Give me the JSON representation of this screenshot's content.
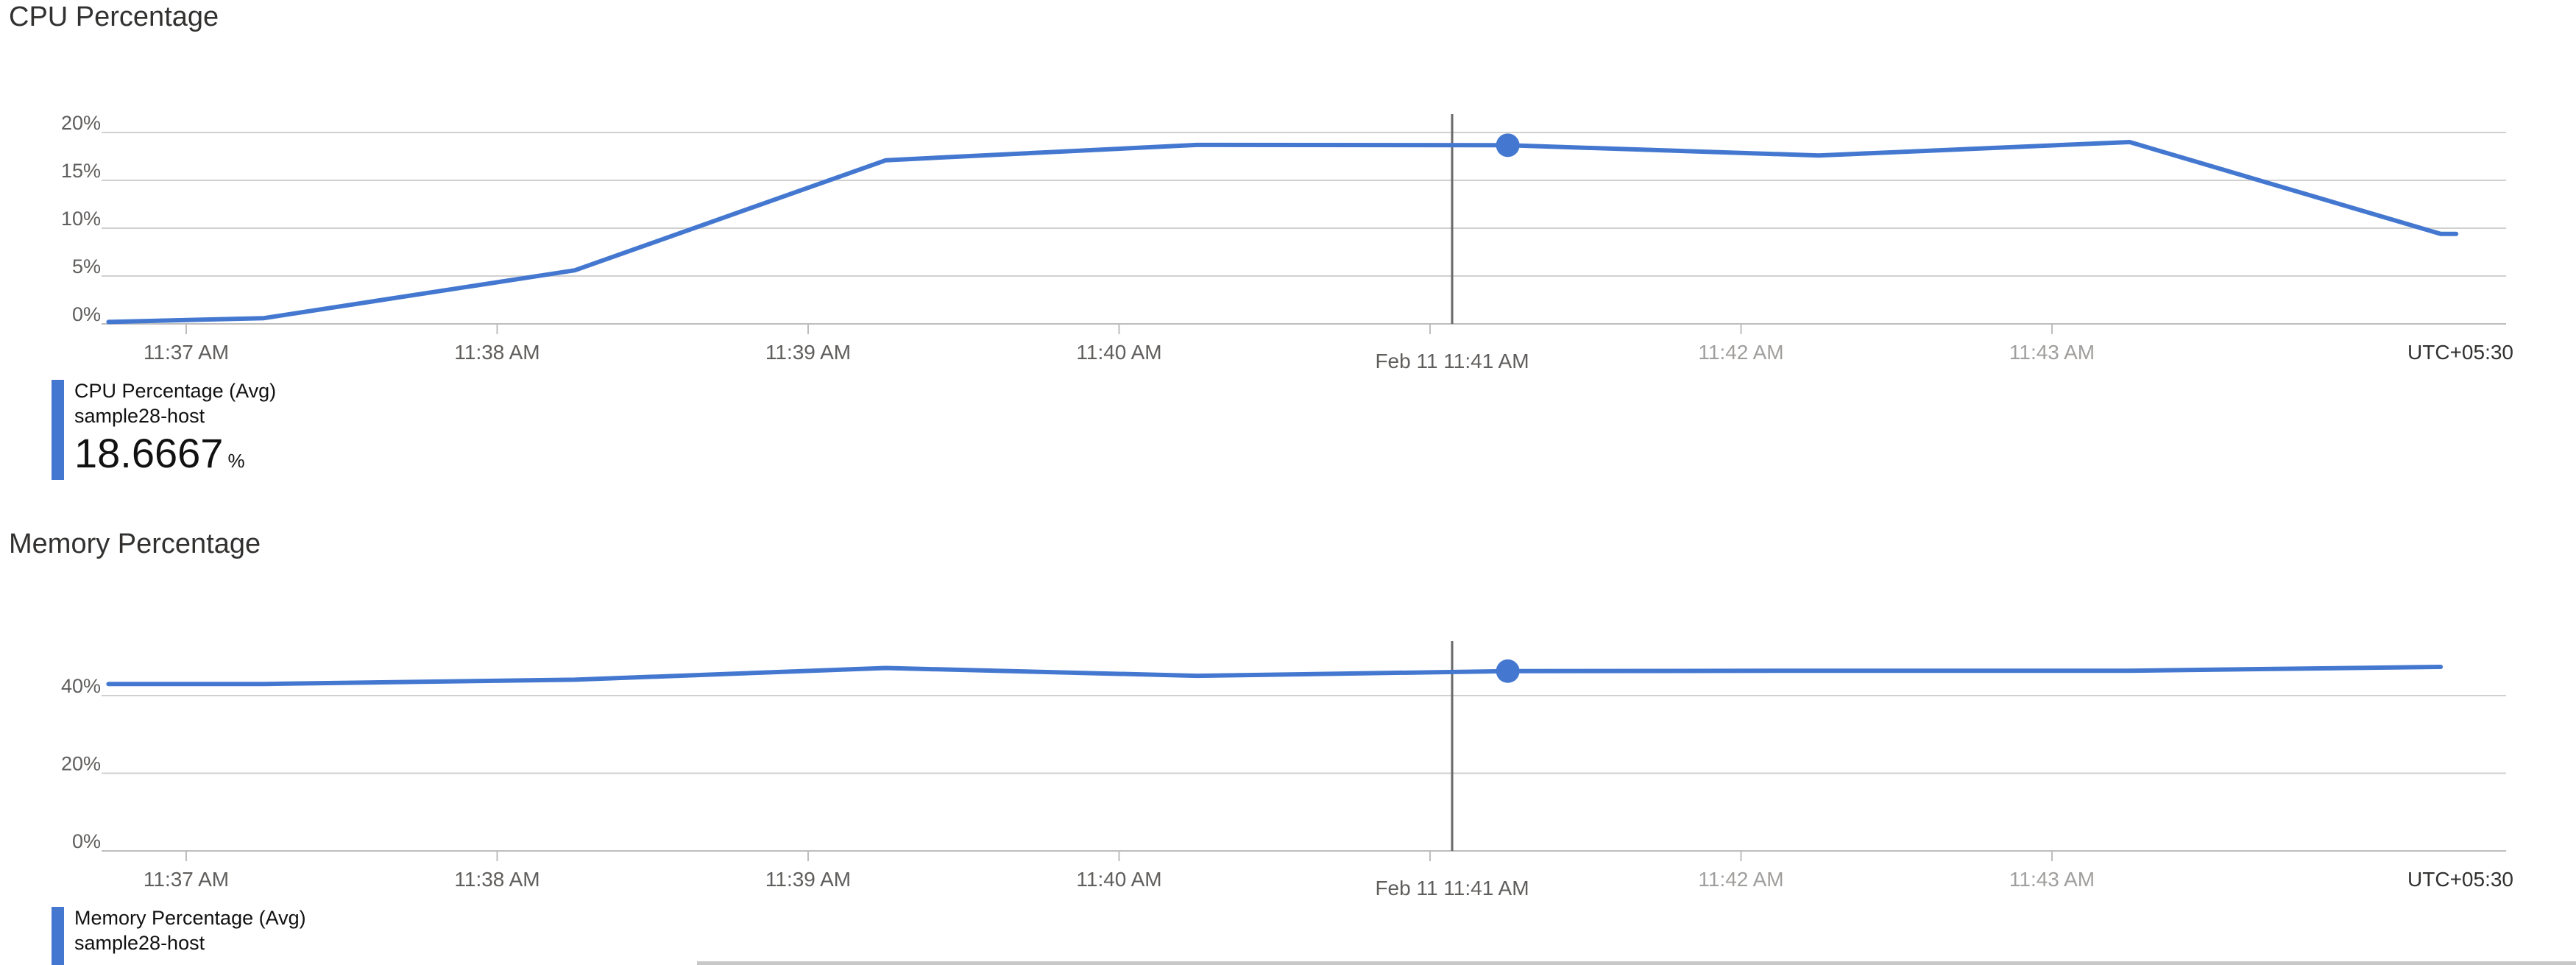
{
  "colors": {
    "series": "#4478d0",
    "grid": "#d0d0d0",
    "axis_text": "#605e5c",
    "axis_text_faded": "#a19f9d",
    "cursor": "#6a6a6a"
  },
  "time_axis": {
    "tick_labels": [
      "11:37 AM",
      "11:38 AM",
      "11:39 AM",
      "11:40 AM",
      "Feb 11 11:41 AM",
      "11:42 AM",
      "11:43 AM"
    ],
    "timezone": "UTC+05:30"
  },
  "cpu_panel": {
    "title": "CPU Percentage",
    "legend": {
      "metric": "CPU Percentage (Avg)",
      "resource": "sample28-host",
      "value": "18.6667",
      "unit": "%"
    }
  },
  "memory_panel": {
    "title": "Memory Percentage",
    "legend": {
      "metric": "Memory Percentage (Avg)",
      "resource": "sample28-host"
    }
  },
  "chart_data": [
    {
      "type": "line",
      "title": "CPU Percentage",
      "xlabel": "",
      "ylabel": "",
      "x_tick_labels": [
        "11:37 AM",
        "11:38 AM",
        "11:39 AM",
        "11:40 AM",
        "Feb 11 11:41 AM",
        "11:42 AM",
        "11:43 AM"
      ],
      "x_tick_times": [
        "11:37",
        "11:38",
        "11:39",
        "11:40",
        "11:41",
        "11:42",
        "11:43"
      ],
      "y_ticks": [
        "0%",
        "5%",
        "10%",
        "15%",
        "20%"
      ],
      "ylim": [
        0,
        20
      ],
      "grid": true,
      "timezone_label": "UTC+05:30",
      "cursor_time": "11:41",
      "series": [
        {
          "name": "CPU Percentage (Avg)",
          "points": [
            {
              "x": "11:36:45",
              "y": 0.2
            },
            {
              "x": "11:37:15",
              "y": 0.6
            },
            {
              "x": "11:38:15",
              "y": 5.6
            },
            {
              "x": "11:39:15",
              "y": 17.1
            },
            {
              "x": "11:40:15",
              "y": 18.7
            },
            {
              "x": "11:41:15",
              "y": 18.6667
            },
            {
              "x": "11:42:15",
              "y": 17.6
            },
            {
              "x": "11:43:15",
              "y": 19.0
            },
            {
              "x": "11:44:15",
              "y": 9.4
            },
            {
              "x": "11:44:18",
              "y": 9.4
            }
          ],
          "highlight": {
            "x": "11:41:15",
            "y": 18.6667
          }
        }
      ]
    },
    {
      "type": "line",
      "title": "Memory Percentage",
      "xlabel": "",
      "ylabel": "",
      "x_tick_labels": [
        "11:37 AM",
        "11:38 AM",
        "11:39 AM",
        "11:40 AM",
        "Feb 11 11:41 AM",
        "11:42 AM",
        "11:43 AM"
      ],
      "x_tick_times": [
        "11:37",
        "11:38",
        "11:39",
        "11:40",
        "11:41",
        "11:42",
        "11:43"
      ],
      "y_ticks": [
        "0%",
        "20%",
        "40%"
      ],
      "ylim": [
        0,
        40
      ],
      "grid": true,
      "timezone_label": "UTC+05:30",
      "cursor_time": "11:41",
      "series": [
        {
          "name": "Memory Percentage (Avg)",
          "points": [
            {
              "x": "11:36:45",
              "y": 43.0
            },
            {
              "x": "11:37:15",
              "y": 43.0
            },
            {
              "x": "11:38:15",
              "y": 44.1
            },
            {
              "x": "11:39:15",
              "y": 47.1
            },
            {
              "x": "11:40:15",
              "y": 45.1
            },
            {
              "x": "11:41:15",
              "y": 46.3
            },
            {
              "x": "11:42:15",
              "y": 46.4
            },
            {
              "x": "11:43:15",
              "y": 46.4
            },
            {
              "x": "11:44:15",
              "y": 47.4
            }
          ],
          "highlight": {
            "x": "11:41:15",
            "y": 46.3
          }
        }
      ]
    }
  ]
}
